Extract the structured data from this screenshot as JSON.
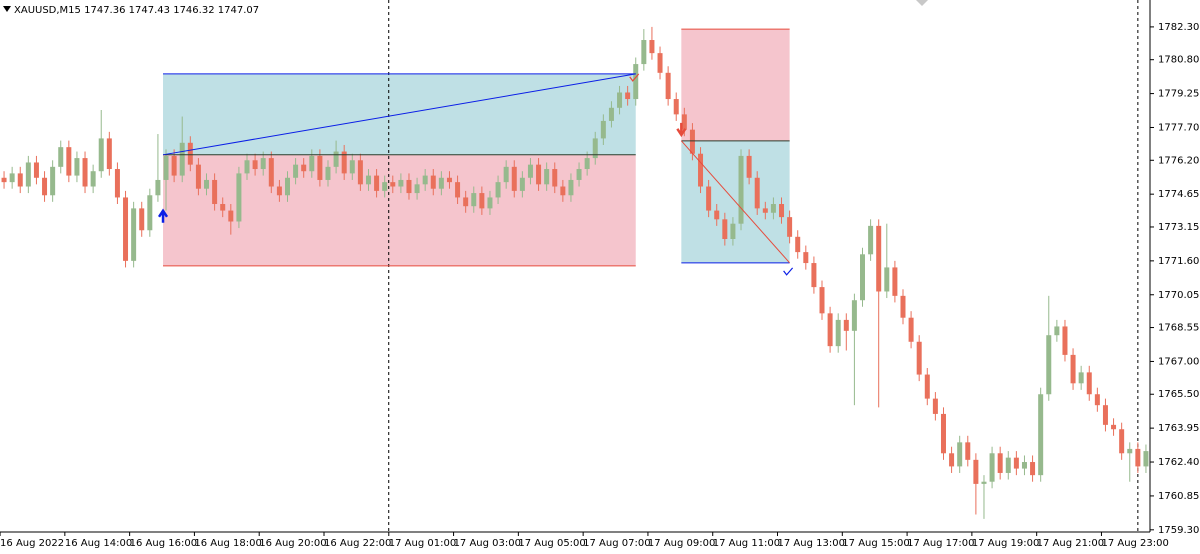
{
  "chart_data": {
    "type": "candlestick",
    "symbol": "XAUUSD,M15",
    "quote": [
      1747.36,
      1747.43,
      1746.32,
      1747.07
    ],
    "open": [
      1775.4,
      1775.2,
      1775.6,
      1775.0,
      1776.1,
      1775.4,
      1774.6,
      1775.9,
      1776.8,
      1775.5,
      1776.3,
      1775.0,
      1775.7,
      1777.2,
      1775.8,
      1774.5,
      1771.6,
      1774.0,
      1773.0,
      1774.6,
      1775.3,
      1776.4,
      1775.5,
      1777.0,
      1776.0,
      1774.9,
      1775.3,
      1774.2,
      1773.9,
      1773.4,
      1775.6,
      1776.2,
      1775.8,
      1776.3,
      1775.0,
      1774.6,
      1775.4,
      1776.0,
      1775.7,
      1776.4,
      1775.3,
      1775.9,
      1776.6,
      1775.6,
      1776.2,
      1775.1,
      1775.5,
      1774.8,
      1775.2,
      1775.0,
      1775.3,
      1774.7,
      1775.1,
      1775.5,
      1774.9,
      1775.4,
      1775.2,
      1774.5,
      1774.1,
      1774.7,
      1774.0,
      1774.5,
      1775.2,
      1775.9,
      1774.8,
      1775.4,
      1776.0,
      1775.1,
      1775.8,
      1775.0,
      1774.6,
      1775.3,
      1775.8,
      1776.3,
      1777.2,
      1778.0,
      1778.6,
      1779.3,
      1779.0,
      1780.6,
      1781.7,
      1781.1,
      1780.2,
      1779.0,
      1778.3,
      1777.6,
      1776.5,
      1775.0,
      1773.9,
      1773.5,
      1772.6,
      1773.3,
      1776.4,
      1775.4,
      1774.0,
      1773.8,
      1774.2,
      1773.6,
      1772.7,
      1772.0,
      1771.5,
      1770.4,
      1769.2,
      1767.7,
      1768.9,
      1768.4,
      1769.8,
      1771.9,
      1773.2,
      1770.2,
      1771.3,
      1770.0,
      1769.0,
      1767.9,
      1766.4,
      1765.3,
      1764.6,
      1762.8,
      1762.2,
      1763.3,
      1762.5,
      1761.4,
      1761.5,
      1762.8,
      1761.9,
      1762.6,
      1762.1,
      1762.4,
      1761.8,
      1765.5,
      1768.2,
      1768.6,
      1767.3,
      1766.0,
      1766.5,
      1765.5,
      1765.0,
      1764.1,
      1763.9,
      1762.8,
      1763.0,
      1762.2
    ],
    "high": [
      1775.7,
      1775.9,
      1775.9,
      1776.4,
      1776.4,
      1775.7,
      1776.2,
      1777.1,
      1777.1,
      1776.6,
      1776.6,
      1776.0,
      1778.5,
      1777.5,
      1776.1,
      1774.8,
      1774.3,
      1774.3,
      1774.9,
      1777.4,
      1776.7,
      1776.7,
      1778.2,
      1777.3,
      1776.3,
      1775.6,
      1775.6,
      1774.5,
      1774.2,
      1775.9,
      1776.5,
      1776.5,
      1776.6,
      1776.6,
      1775.3,
      1775.7,
      1776.3,
      1776.3,
      1776.7,
      1776.7,
      1776.2,
      1777.1,
      1776.9,
      1776.5,
      1776.5,
      1775.8,
      1775.8,
      1775.5,
      1775.5,
      1775.6,
      1775.6,
      1775.4,
      1775.8,
      1775.8,
      1775.7,
      1775.7,
      1775.5,
      1774.8,
      1775.0,
      1775.0,
      1774.8,
      1775.5,
      1776.2,
      1776.2,
      1775.7,
      1776.3,
      1776.3,
      1776.1,
      1776.1,
      1775.3,
      1775.6,
      1776.1,
      1776.6,
      1777.5,
      1778.3,
      1778.9,
      1779.6,
      1779.6,
      1780.9,
      1782.2,
      1782.3,
      1781.4,
      1780.5,
      1779.3,
      1778.6,
      1777.9,
      1776.8,
      1775.3,
      1774.2,
      1773.8,
      1773.6,
      1776.7,
      1776.7,
      1775.7,
      1774.3,
      1774.5,
      1774.5,
      1773.9,
      1773.0,
      1772.3,
      1771.8,
      1770.7,
      1769.5,
      1769.2,
      1769.2,
      1770.1,
      1772.2,
      1773.5,
      1773.5,
      1773.3,
      1771.6,
      1770.3,
      1769.3,
      1768.2,
      1766.7,
      1765.6,
      1764.9,
      1763.1,
      1763.6,
      1763.6,
      1762.8,
      1761.8,
      1763.1,
      1763.1,
      1762.9,
      1762.9,
      1762.7,
      1762.7,
      1765.8,
      1770.0,
      1768.9,
      1768.9,
      1767.6,
      1766.8,
      1766.8,
      1765.8,
      1765.3,
      1764.4,
      1764.2,
      1763.3,
      1763.3,
      1763.2
    ],
    "low": [
      1774.9,
      1774.9,
      1774.7,
      1774.7,
      1775.1,
      1774.3,
      1774.3,
      1775.6,
      1775.2,
      1775.2,
      1774.7,
      1774.7,
      1775.4,
      1775.5,
      1774.2,
      1771.3,
      1771.3,
      1772.7,
      1772.7,
      1774.3,
      1773.9,
      1775.2,
      1775.2,
      1775.7,
      1774.6,
      1774.6,
      1773.9,
      1773.6,
      1772.8,
      1773.1,
      1775.3,
      1775.5,
      1775.5,
      1774.7,
      1774.3,
      1774.3,
      1775.1,
      1775.4,
      1775.4,
      1775.0,
      1775.0,
      1775.6,
      1775.3,
      1775.3,
      1774.8,
      1774.8,
      1774.5,
      1774.5,
      1774.7,
      1774.7,
      1774.4,
      1774.4,
      1774.8,
      1774.6,
      1774.6,
      1774.9,
      1774.2,
      1773.8,
      1773.8,
      1773.7,
      1773.7,
      1774.2,
      1774.9,
      1774.5,
      1774.5,
      1775.1,
      1774.8,
      1774.8,
      1774.7,
      1774.3,
      1774.3,
      1775.0,
      1775.5,
      1776.0,
      1776.9,
      1777.7,
      1778.3,
      1778.7,
      1778.7,
      1780.3,
      1780.8,
      1779.9,
      1778.7,
      1778.0,
      1777.3,
      1776.2,
      1774.7,
      1773.6,
      1773.2,
      1772.3,
      1772.3,
      1773.0,
      1775.1,
      1773.7,
      1773.5,
      1773.5,
      1773.3,
      1772.4,
      1771.7,
      1771.2,
      1770.1,
      1768.9,
      1767.4,
      1767.4,
      1767.5,
      1765.0,
      1769.5,
      1771.6,
      1764.9,
      1769.9,
      1769.7,
      1768.7,
      1767.6,
      1766.1,
      1765.0,
      1764.3,
      1762.5,
      1761.9,
      1761.9,
      1762.2,
      1760.0,
      1759.8,
      1761.2,
      1761.6,
      1761.6,
      1761.8,
      1761.8,
      1761.5,
      1761.5,
      1765.2,
      1767.9,
      1767.0,
      1765.7,
      1765.7,
      1765.2,
      1764.7,
      1763.8,
      1763.6,
      1762.5,
      1761.5,
      1761.9,
      1761.9
    ],
    "close": [
      1775.2,
      1775.6,
      1775.0,
      1776.1,
      1775.4,
      1774.6,
      1775.9,
      1776.8,
      1775.5,
      1776.3,
      1775.0,
      1775.7,
      1777.2,
      1775.8,
      1774.5,
      1771.6,
      1774.0,
      1773.0,
      1774.6,
      1775.3,
      1776.4,
      1775.5,
      1777.0,
      1776.0,
      1774.9,
      1775.3,
      1774.2,
      1773.9,
      1773.4,
      1775.6,
      1776.2,
      1775.8,
      1776.3,
      1775.0,
      1774.6,
      1775.4,
      1776.0,
      1775.7,
      1776.4,
      1775.3,
      1775.9,
      1776.6,
      1775.6,
      1776.2,
      1775.1,
      1775.5,
      1774.8,
      1775.2,
      1775.0,
      1775.3,
      1774.7,
      1775.1,
      1775.5,
      1774.9,
      1775.4,
      1775.2,
      1774.5,
      1774.1,
      1774.7,
      1774.0,
      1774.5,
      1775.2,
      1775.9,
      1774.8,
      1775.4,
      1776.0,
      1775.1,
      1775.8,
      1775.0,
      1774.6,
      1775.3,
      1775.8,
      1776.3,
      1777.2,
      1778.0,
      1778.6,
      1779.3,
      1779.0,
      1780.6,
      1781.7,
      1781.1,
      1780.2,
      1779.0,
      1778.3,
      1777.6,
      1776.5,
      1775.0,
      1773.9,
      1773.5,
      1772.6,
      1773.3,
      1776.4,
      1775.4,
      1774.0,
      1773.8,
      1774.2,
      1773.6,
      1772.7,
      1772.0,
      1771.5,
      1770.4,
      1769.2,
      1767.7,
      1768.9,
      1768.4,
      1769.8,
      1771.9,
      1773.2,
      1770.2,
      1771.3,
      1770.0,
      1769.0,
      1767.9,
      1766.4,
      1765.3,
      1764.6,
      1762.8,
      1762.2,
      1763.3,
      1762.5,
      1761.4,
      1761.5,
      1762.8,
      1761.9,
      1762.6,
      1762.1,
      1762.4,
      1761.8,
      1765.5,
      1768.2,
      1768.6,
      1767.3,
      1766.0,
      1766.5,
      1765.5,
      1765.0,
      1764.1,
      1763.9,
      1762.8,
      1763.0,
      1762.2,
      1762.9
    ],
    "up_color": "#96b98d",
    "down_color": "#e9705b",
    "xlim": [
      -0.5,
      141.5
    ],
    "xticks": [
      {
        "value": 0,
        "label": "16 Aug 2022"
      },
      {
        "value": 8,
        "label": "16 Aug 14:00"
      },
      {
        "value": 16,
        "label": "16 Aug 16:00"
      },
      {
        "value": 24,
        "label": "16 Aug 18:00"
      },
      {
        "value": 32,
        "label": "16 Aug 20:00"
      },
      {
        "value": 40,
        "label": "16 Aug 22:00"
      },
      {
        "value": 48,
        "label": "17 Aug 01:00"
      },
      {
        "value": 56,
        "label": "17 Aug 03:00"
      },
      {
        "value": 64,
        "label": "17 Aug 05:00"
      },
      {
        "value": 72,
        "label": "17 Aug 07:00"
      },
      {
        "value": 80,
        "label": "17 Aug 09:00"
      },
      {
        "value": 88,
        "label": "17 Aug 11:00"
      },
      {
        "value": 96,
        "label": "17 Aug 13:00"
      },
      {
        "value": 104,
        "label": "17 Aug 15:00"
      },
      {
        "value": 112,
        "label": "17 Aug 17:00"
      },
      {
        "value": 120,
        "label": "17 Aug 19:00"
      },
      {
        "value": 128,
        "label": "17 Aug 21:00"
      },
      {
        "value": 136,
        "label": "17 Aug 23:00"
      }
    ],
    "ylim": [
      1759.2,
      1783.53
    ],
    "yticks": [
      {
        "value": 1782.3,
        "label": "1782.30"
      },
      {
        "value": 1780.8,
        "label": "1780.80"
      },
      1779.25,
      {
        "value": 1777.7,
        "label": "1777.70"
      },
      {
        "value": 1776.2,
        "label": "1776.20"
      },
      1774.65,
      1773.15,
      {
        "value": 1771.6,
        "label": "1771.60"
      },
      1770.05,
      1768.55,
      {
        "value": 1767,
        "label": "1767.00"
      },
      {
        "value": 1765.5,
        "label": "1765.50"
      },
      1763.95,
      {
        "value": 1762.4,
        "label": "1762.40"
      },
      1760.85,
      {
        "value": 1759.3,
        "label": "1759.30"
      }
    ],
    "grid": false,
    "separators": [
      47.5,
      140
    ],
    "trades": [
      {
        "direction": "buy",
        "start": 20,
        "end": 78,
        "entry": 1776.45,
        "take_profit": 1780.15,
        "stop_loss": 1771.37
      },
      {
        "direction": "sell",
        "start": 84,
        "end": 97,
        "entry": 1777.09,
        "take_profit": 1771.51,
        "stop_loss": 1782.2
      }
    ],
    "profit_color": "#bfe0e5",
    "loss_color": "#f5c5cd",
    "buy_color": "#0a1ee6",
    "sell_color": "#e64b3c"
  }
}
